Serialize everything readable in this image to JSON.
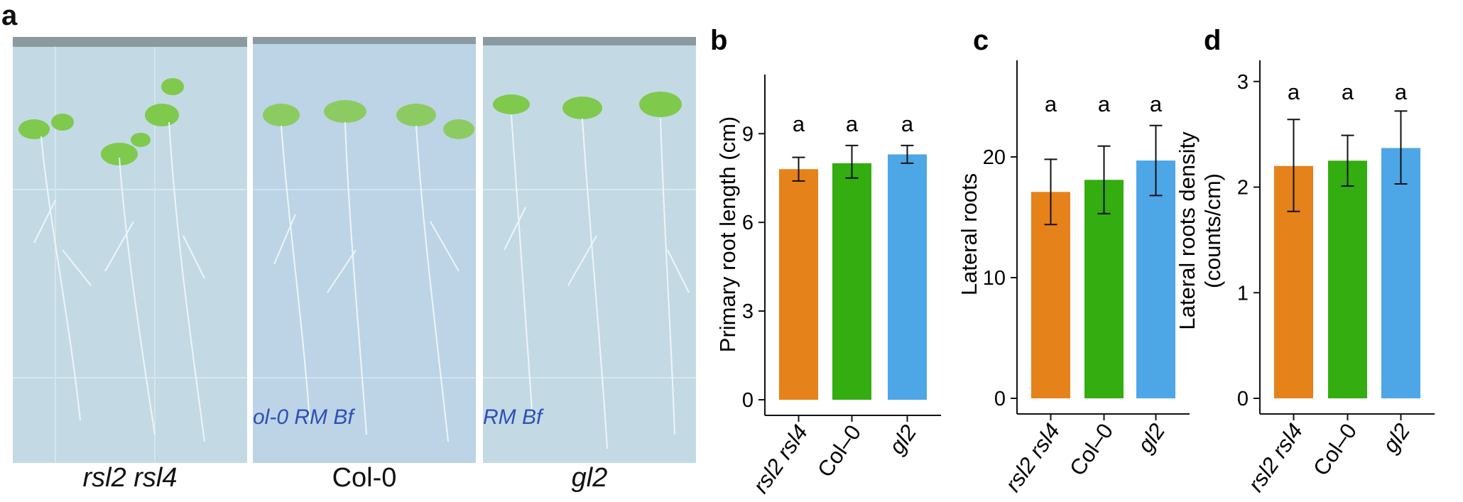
{
  "panel_a": {
    "letter": "a",
    "plates": [
      {
        "label": "rsl2 rsl4",
        "italic": true,
        "marker_text": ""
      },
      {
        "label": "Col-0",
        "italic": false,
        "marker_text": "ol-0  RM   Bf"
      },
      {
        "label": "gl2",
        "italic": true,
        "marker_text": "RM   Bf"
      }
    ]
  },
  "colors": {
    "rsl2 rsl4": "#E6821A",
    "Col-0": "#33AD0F",
    "gl2": "#4DA6E6"
  },
  "chart_data": [
    {
      "letter": "b",
      "type": "bar",
      "categories": [
        "rsl2 rsl4",
        "Col–0",
        "gl2"
      ],
      "values": [
        7.8,
        8.0,
        8.3
      ],
      "errors": [
        [
          7.4,
          8.2
        ],
        [
          7.5,
          8.6
        ],
        [
          8.0,
          8.6
        ]
      ],
      "significance": [
        "a",
        "a",
        "a"
      ],
      "ylabel": "Primary root length (cm)",
      "ylim": [
        0,
        11
      ],
      "yticks": [
        "0",
        "3",
        "6",
        "9"
      ]
    },
    {
      "letter": "c",
      "type": "bar",
      "categories": [
        "rsl2 rsl4",
        "Col–0",
        "gl2"
      ],
      "values": [
        17.1,
        18.1,
        19.7
      ],
      "errors": [
        [
          14.4,
          19.8
        ],
        [
          15.3,
          20.9
        ],
        [
          16.8,
          22.6
        ]
      ],
      "significance": [
        "a",
        "a",
        "a"
      ],
      "ylabel": "Lateral roots",
      "ylim": [
        0,
        28
      ],
      "yticks": [
        "0",
        "10",
        "20"
      ]
    },
    {
      "letter": "d",
      "type": "bar",
      "categories": [
        "rsl2 rsl4",
        "Col–0",
        "gl2"
      ],
      "values": [
        2.2,
        2.25,
        2.37
      ],
      "errors": [
        [
          1.77,
          2.64
        ],
        [
          2.01,
          2.49
        ],
        [
          2.03,
          2.72
        ]
      ],
      "significance": [
        "a",
        "a",
        "a"
      ],
      "ylabel": "Lateral roots density (counts/cm)",
      "ylabel_lines": [
        "Lateral roots density",
        "(counts/cm)"
      ],
      "ylim": [
        0,
        3.2
      ],
      "yticks": [
        "0",
        "1",
        "2",
        "3"
      ]
    }
  ]
}
